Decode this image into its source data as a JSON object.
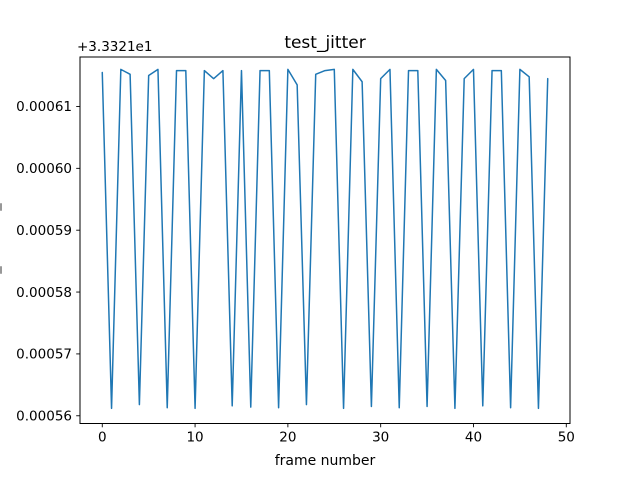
{
  "figure": {
    "background": "#ffffff",
    "text_color": "#000000",
    "line_color": "#1f77b4"
  },
  "chart_data": {
    "type": "line",
    "title": "test_jitter",
    "xlabel": "frame number",
    "ylabel": "",
    "legend": null,
    "grid": false,
    "series_color": "#1f77b4",
    "y_axis_offset_label": "+3.3321e1",
    "y_axis_offset_value": 33.321,
    "xlim": [
      -2.4,
      50.4
    ],
    "ylim_displayed": [
      0.00055875,
      0.000618
    ],
    "xticks": [
      0,
      10,
      20,
      30,
      40,
      50
    ],
    "xtick_labels": [
      "0",
      "10",
      "20",
      "30",
      "40",
      "50"
    ],
    "ytick_values": [
      0.00056,
      0.00057,
      0.00058,
      0.00059,
      0.0006,
      0.00061
    ],
    "ytick_labels": [
      "0.00056",
      "0.00057",
      "0.00058",
      "0.00059",
      "0.00060",
      "0.00061"
    ],
    "x": [
      0,
      1,
      2,
      3,
      4,
      5,
      6,
      7,
      8,
      9,
      10,
      11,
      12,
      13,
      14,
      15,
      16,
      17,
      18,
      19,
      20,
      21,
      22,
      23,
      24,
      25,
      26,
      27,
      28,
      29,
      30,
      31,
      32,
      33,
      34,
      35,
      36,
      37,
      38,
      39,
      40,
      41,
      42,
      43,
      44,
      45,
      46,
      47,
      48
    ],
    "y": [
      33.3216155,
      33.3215612,
      33.321616,
      33.3216152,
      33.3215618,
      33.321615,
      33.321616,
      33.3215613,
      33.3216158,
      33.3216158,
      33.3215612,
      33.3216158,
      33.3216145,
      33.3216158,
      33.3215616,
      33.3216158,
      33.3215614,
      33.3216158,
      33.3216158,
      33.3215613,
      33.321616,
      33.3216135,
      33.3215618,
      33.3216152,
      33.3216158,
      33.321616,
      33.3215612,
      33.321616,
      33.321614,
      33.3215615,
      33.3216145,
      33.321616,
      33.3215613,
      33.3216158,
      33.3216158,
      33.3215615,
      33.321616,
      33.3216142,
      33.3215612,
      33.3216145,
      33.321616,
      33.3215616,
      33.3216158,
      33.3216158,
      33.3215613,
      33.321616,
      33.3216148,
      33.3215612,
      33.3216145
    ]
  }
}
